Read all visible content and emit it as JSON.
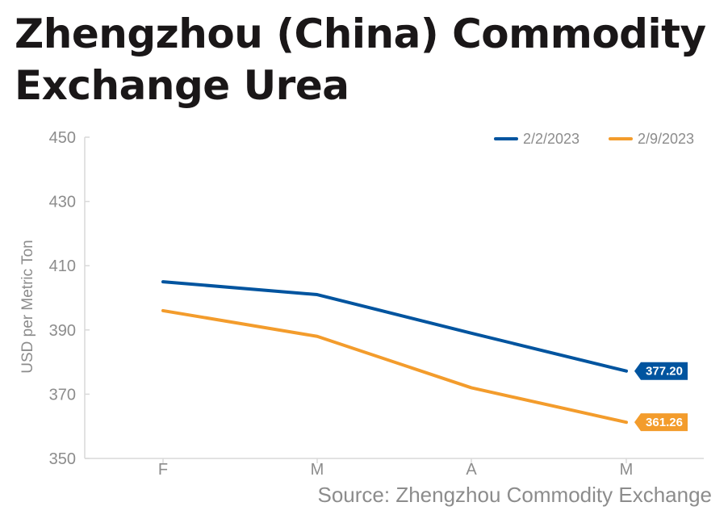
{
  "title": "Zhengzhou (China) Commodity Exchange Urea",
  "source": "Source: Zhengzhou Commodity Exchange",
  "colors": {
    "series_1": "#00549f",
    "series_2": "#f39c2c",
    "axis": "#d9d9d9",
    "text": "#8c8c8c"
  },
  "chart_data": {
    "type": "line",
    "title": "Zhengzhou (China) Commodity Exchange Urea",
    "xlabel": "",
    "ylabel": "USD per Metric Ton",
    "categories": [
      "F",
      "M",
      "A",
      "M"
    ],
    "ylim": [
      350,
      450
    ],
    "yticks": [
      350,
      370,
      390,
      410,
      430,
      450
    ],
    "grid": false,
    "legend_position": "top-right",
    "series": [
      {
        "name": "2/2/2023",
        "color": "#00549f",
        "values": [
          405,
          401,
          389,
          377.2
        ],
        "end_label": "377.20"
      },
      {
        "name": "2/9/2023",
        "color": "#f39c2c",
        "values": [
          396,
          388,
          372,
          361.26
        ],
        "end_label": "361.26"
      }
    ]
  }
}
